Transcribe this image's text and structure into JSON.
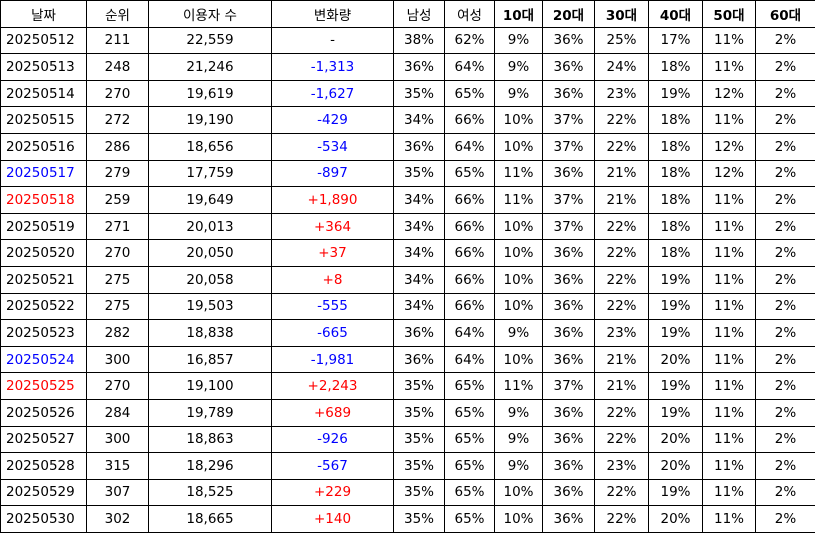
{
  "columns": [
    "날짜",
    "순위",
    "이용자 수",
    "변화량",
    "남성",
    "여성",
    "10대",
    "20대",
    "30대",
    "40대",
    "50대",
    "60대"
  ],
  "rows": [
    {
      "date": "20250512",
      "rank": "211",
      "users": "22,559",
      "change": "-",
      "male": "38%",
      "female": "62%",
      "a10": "9%",
      "a20": "36%",
      "a30": "25%",
      "a40": "17%",
      "a50": "11%",
      "a60": "2%"
    },
    {
      "date": "20250513",
      "rank": "248",
      "users": "21,246",
      "change": "-1,313",
      "male": "36%",
      "female": "64%",
      "a10": "9%",
      "a20": "36%",
      "a30": "24%",
      "a40": "18%",
      "a50": "11%",
      "a60": "2%"
    },
    {
      "date": "20250514",
      "rank": "270",
      "users": "19,619",
      "change": "-1,627",
      "male": "35%",
      "female": "65%",
      "a10": "9%",
      "a20": "36%",
      "a30": "23%",
      "a40": "19%",
      "a50": "12%",
      "a60": "2%"
    },
    {
      "date": "20250515",
      "rank": "272",
      "users": "19,190",
      "change": "-429",
      "male": "34%",
      "female": "66%",
      "a10": "10%",
      "a20": "37%",
      "a30": "22%",
      "a40": "18%",
      "a50": "11%",
      "a60": "2%"
    },
    {
      "date": "20250516",
      "rank": "286",
      "users": "18,656",
      "change": "-534",
      "male": "36%",
      "female": "64%",
      "a10": "10%",
      "a20": "37%",
      "a30": "22%",
      "a40": "18%",
      "a50": "12%",
      "a60": "2%"
    },
    {
      "date": "20250517",
      "rank": "279",
      "users": "17,759",
      "change": "-897",
      "male": "35%",
      "female": "65%",
      "a10": "11%",
      "a20": "36%",
      "a30": "21%",
      "a40": "18%",
      "a50": "12%",
      "a60": "2%",
      "day": "sat"
    },
    {
      "date": "20250518",
      "rank": "259",
      "users": "19,649",
      "change": "+1,890",
      "male": "34%",
      "female": "66%",
      "a10": "11%",
      "a20": "37%",
      "a30": "21%",
      "a40": "18%",
      "a50": "11%",
      "a60": "2%",
      "day": "sun"
    },
    {
      "date": "20250519",
      "rank": "271",
      "users": "20,013",
      "change": "+364",
      "male": "34%",
      "female": "66%",
      "a10": "10%",
      "a20": "37%",
      "a30": "22%",
      "a40": "18%",
      "a50": "11%",
      "a60": "2%"
    },
    {
      "date": "20250520",
      "rank": "270",
      "users": "20,050",
      "change": "+37",
      "male": "34%",
      "female": "66%",
      "a10": "10%",
      "a20": "36%",
      "a30": "22%",
      "a40": "18%",
      "a50": "11%",
      "a60": "2%"
    },
    {
      "date": "20250521",
      "rank": "275",
      "users": "20,058",
      "change": "+8",
      "male": "34%",
      "female": "66%",
      "a10": "10%",
      "a20": "36%",
      "a30": "22%",
      "a40": "19%",
      "a50": "11%",
      "a60": "2%"
    },
    {
      "date": "20250522",
      "rank": "275",
      "users": "19,503",
      "change": "-555",
      "male": "34%",
      "female": "66%",
      "a10": "10%",
      "a20": "36%",
      "a30": "22%",
      "a40": "19%",
      "a50": "11%",
      "a60": "2%"
    },
    {
      "date": "20250523",
      "rank": "282",
      "users": "18,838",
      "change": "-665",
      "male": "36%",
      "female": "64%",
      "a10": "9%",
      "a20": "36%",
      "a30": "23%",
      "a40": "19%",
      "a50": "11%",
      "a60": "2%"
    },
    {
      "date": "20250524",
      "rank": "300",
      "users": "16,857",
      "change": "-1,981",
      "male": "36%",
      "female": "64%",
      "a10": "10%",
      "a20": "36%",
      "a30": "21%",
      "a40": "20%",
      "a50": "11%",
      "a60": "2%",
      "day": "sat"
    },
    {
      "date": "20250525",
      "rank": "270",
      "users": "19,100",
      "change": "+2,243",
      "male": "35%",
      "female": "65%",
      "a10": "11%",
      "a20": "37%",
      "a30": "21%",
      "a40": "19%",
      "a50": "11%",
      "a60": "2%",
      "day": "sun"
    },
    {
      "date": "20250526",
      "rank": "284",
      "users": "19,789",
      "change": "+689",
      "male": "35%",
      "female": "65%",
      "a10": "9%",
      "a20": "36%",
      "a30": "22%",
      "a40": "19%",
      "a50": "11%",
      "a60": "2%"
    },
    {
      "date": "20250527",
      "rank": "300",
      "users": "18,863",
      "change": "-926",
      "male": "35%",
      "female": "65%",
      "a10": "9%",
      "a20": "36%",
      "a30": "22%",
      "a40": "20%",
      "a50": "11%",
      "a60": "2%"
    },
    {
      "date": "20250528",
      "rank": "315",
      "users": "18,296",
      "change": "-567",
      "male": "35%",
      "female": "65%",
      "a10": "9%",
      "a20": "36%",
      "a30": "23%",
      "a40": "20%",
      "a50": "11%",
      "a60": "2%"
    },
    {
      "date": "20250529",
      "rank": "307",
      "users": "18,525",
      "change": "+229",
      "male": "35%",
      "female": "65%",
      "a10": "10%",
      "a20": "36%",
      "a30": "22%",
      "a40": "19%",
      "a50": "11%",
      "a60": "2%"
    },
    {
      "date": "20250530",
      "rank": "302",
      "users": "18,665",
      "change": "+140",
      "male": "35%",
      "female": "65%",
      "a10": "10%",
      "a20": "36%",
      "a30": "22%",
      "a40": "20%",
      "a50": "11%",
      "a60": "2%"
    }
  ],
  "colors": {
    "negative": "#0000ff",
    "positive": "#ff0000",
    "saturday": "#0000ff",
    "sunday": "#ff0000"
  }
}
